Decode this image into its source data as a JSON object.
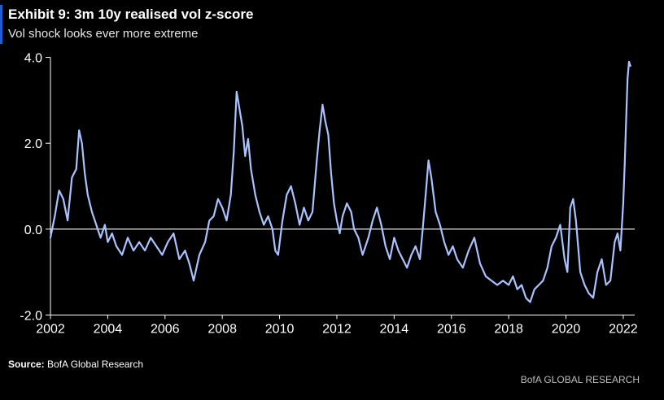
{
  "header": {
    "title": "Exhibit 9: 3m 10y realised vol z-score",
    "subtitle": "Vol shock looks ever more extreme"
  },
  "footer": {
    "source_label": "Source:",
    "source_text": "BofA Global Research",
    "brand": "BofA GLOBAL RESEARCH"
  },
  "chart_data": {
    "type": "line",
    "title": "Exhibit 9: 3m 10y realised vol z-score",
    "subtitle": "Vol shock looks ever more extreme",
    "xlabel": "",
    "ylabel": "",
    "xlim": [
      2002,
      2022.4
    ],
    "ylim": [
      -2.2,
      4.2
    ],
    "x_ticks": [
      2002,
      2004,
      2006,
      2008,
      2010,
      2012,
      2014,
      2016,
      2018,
      2020,
      2022
    ],
    "x_tick_labels": [
      "2002",
      "2004",
      "2006",
      "2008",
      "2010",
      "2012",
      "2014",
      "2016",
      "2018",
      "2020",
      "2022"
    ],
    "y_ticks": [
      -2,
      0,
      2,
      4
    ],
    "y_tick_labels": [
      "-2.0",
      "0.0",
      "2.0",
      "4.0"
    ],
    "grid": false,
    "zero_line": true,
    "colors": {
      "series": "#a9c3ff",
      "zero_line": "#ffffff",
      "axis": "#ffffff"
    },
    "series": [
      {
        "name": "",
        "x": [
          2002.0,
          2002.15,
          2002.3,
          2002.45,
          2002.6,
          2002.75,
          2002.9,
          2003.0,
          2003.1,
          2003.2,
          2003.3,
          2003.45,
          2003.6,
          2003.75,
          2003.9,
          2004.0,
          2004.15,
          2004.3,
          2004.5,
          2004.7,
          2004.9,
          2005.1,
          2005.3,
          2005.5,
          2005.7,
          2005.9,
          2006.1,
          2006.3,
          2006.5,
          2006.7,
          2006.85,
          2007.0,
          2007.2,
          2007.4,
          2007.55,
          2007.7,
          2007.85,
          2008.0,
          2008.15,
          2008.3,
          2008.4,
          2008.5,
          2008.6,
          2008.7,
          2008.8,
          2008.9,
          2009.0,
          2009.15,
          2009.3,
          2009.45,
          2009.6,
          2009.75,
          2009.85,
          2009.95,
          2010.1,
          2010.25,
          2010.4,
          2010.55,
          2010.7,
          2010.85,
          2011.0,
          2011.15,
          2011.3,
          2011.4,
          2011.5,
          2011.6,
          2011.7,
          2011.8,
          2011.9,
          2012.0,
          2012.1,
          2012.2,
          2012.35,
          2012.5,
          2012.6,
          2012.75,
          2012.9,
          2013.0,
          2013.1,
          2013.25,
          2013.4,
          2013.55,
          2013.7,
          2013.85,
          2014.0,
          2014.15,
          2014.3,
          2014.45,
          2014.6,
          2014.75,
          2014.9,
          2015.0,
          2015.1,
          2015.2,
          2015.3,
          2015.45,
          2015.6,
          2015.75,
          2015.9,
          2016.05,
          2016.2,
          2016.4,
          2016.6,
          2016.8,
          2017.0,
          2017.2,
          2017.4,
          2017.6,
          2017.8,
          2018.0,
          2018.15,
          2018.3,
          2018.45,
          2018.6,
          2018.75,
          2018.9,
          2019.05,
          2019.2,
          2019.35,
          2019.5,
          2019.65,
          2019.8,
          2019.95,
          2020.05,
          2020.15,
          2020.25,
          2020.35,
          2020.5,
          2020.65,
          2020.8,
          2020.95,
          2021.1,
          2021.25,
          2021.4,
          2021.55,
          2021.7,
          2021.8,
          2021.9,
          2022.0,
          2022.05
        ],
        "y": [
          -0.2,
          0.3,
          0.9,
          0.7,
          0.2,
          1.2,
          1.4,
          2.3,
          2.0,
          1.3,
          0.8,
          0.4,
          0.1,
          -0.2,
          0.1,
          -0.3,
          -0.1,
          -0.4,
          -0.6,
          -0.2,
          -0.5,
          -0.3,
          -0.5,
          -0.2,
          -0.4,
          -0.6,
          -0.3,
          -0.1,
          -0.7,
          -0.5,
          -0.8,
          -1.2,
          -0.6,
          -0.3,
          0.2,
          0.3,
          0.7,
          0.5,
          0.2,
          0.8,
          1.8,
          3.2,
          2.8,
          2.4,
          1.7,
          2.1,
          1.4,
          0.8,
          0.4,
          0.1,
          0.3,
          0.0,
          -0.5,
          -0.6,
          0.2,
          0.8,
          1.0,
          0.6,
          0.1,
          0.5,
          0.2,
          0.4,
          1.6,
          2.3,
          2.9,
          2.5,
          2.2,
          1.3,
          0.6,
          0.2,
          -0.1,
          0.3,
          0.6,
          0.4,
          0.0,
          -0.2,
          -0.6,
          -0.4,
          -0.2,
          0.2,
          0.5,
          0.1,
          -0.4,
          -0.7,
          -0.2,
          -0.5,
          -0.7,
          -0.9,
          -0.6,
          -0.4,
          -0.7,
          0.0,
          0.8,
          1.6,
          1.2,
          0.4,
          0.1,
          -0.3,
          -0.6,
          -0.4,
          -0.7,
          -0.9,
          -0.5,
          -0.2,
          -0.8,
          -1.1,
          -1.2,
          -1.3,
          -1.2,
          -1.3,
          -1.1,
          -1.4,
          -1.3,
          -1.6,
          -1.7,
          -1.4,
          -1.3,
          -1.2,
          -0.9,
          -0.4,
          -0.2,
          0.1,
          -0.7,
          -1.0,
          0.5,
          0.7,
          0.2,
          -1.0,
          -1.3,
          -1.5,
          -1.6,
          -1.0,
          -0.7,
          -1.3,
          -1.2,
          -0.3,
          -0.1,
          -0.5,
          0.6,
          1.5
        ]
      },
      {
        "name": "",
        "x": [
          2022.05,
          2022.1,
          2022.15,
          2022.2,
          2022.25
        ],
        "y": [
          1.5,
          2.5,
          3.5,
          3.9,
          3.8
        ]
      }
    ]
  }
}
